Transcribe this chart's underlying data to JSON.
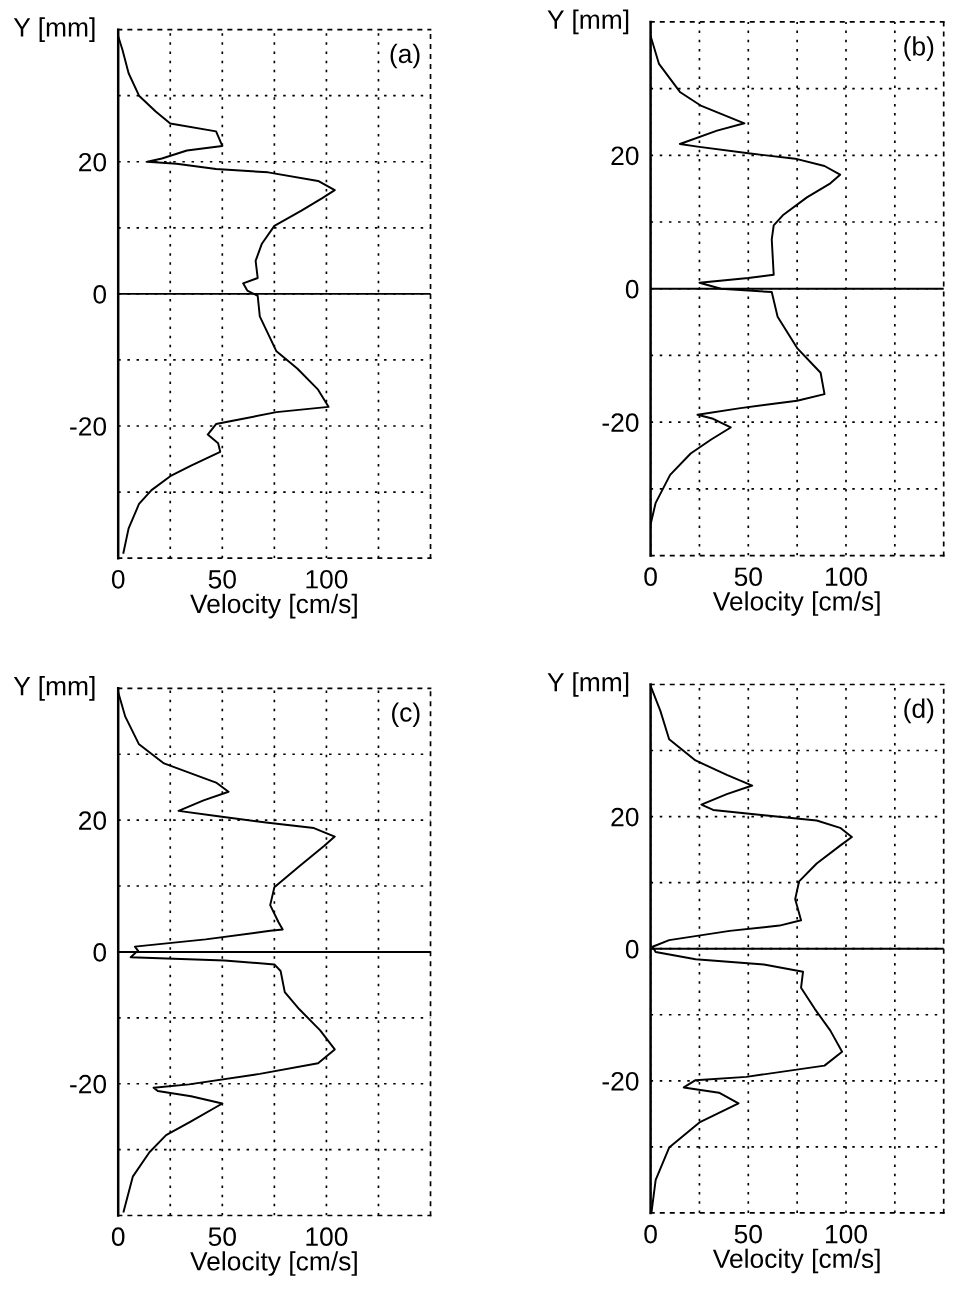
{
  "chart_data": [
    {
      "type": "line",
      "xlabel": "Velocity [cm/s]",
      "ylabel": "Y [mm]",
      "annotations": [
        "(a)"
      ],
      "xlim": [
        0,
        150
      ],
      "ylim": [
        -40,
        40
      ],
      "xticks": [
        0,
        {
          "value": 25,
          "label": null
        },
        50,
        {
          "value": 75,
          "label": null
        },
        100,
        {
          "value": 125,
          "label": null
        }
      ],
      "yticks": [
        {
          "value": -30,
          "label": null
        },
        -20,
        {
          "value": -10,
          "label": null
        },
        0,
        {
          "value": 10,
          "label": null
        },
        20,
        {
          "value": 30,
          "label": null
        }
      ],
      "grid": true,
      "line_style": "solid",
      "ref_lines": [
        {
          "axis": "y",
          "value": 0,
          "color": "#000000",
          "line_style": "solid"
        }
      ],
      "series": [
        {
          "color": "#000000",
          "x": [
            0,
            2,
            5,
            10,
            18,
            25,
            47,
            50,
            33,
            21,
            14,
            28,
            47,
            72,
            96,
            104,
            98,
            88,
            75,
            69,
            66,
            67,
            60,
            62,
            67,
            68,
            76,
            86,
            96,
            101,
            76,
            55,
            47,
            43,
            48,
            49,
            35,
            25,
            16,
            10,
            5,
            2.5
          ],
          "values": [
            39,
            37,
            33.4,
            30,
            27.6,
            25.8,
            24.6,
            22.4,
            21.7,
            20.5,
            20,
            19.7,
            18.9,
            18.4,
            17.1,
            15.7,
            14.5,
            12.6,
            10.3,
            7.6,
            5,
            2.4,
            1.6,
            0.5,
            -0.3,
            -3.4,
            -8.7,
            -11.3,
            -14.5,
            -17.1,
            -17.9,
            -19.2,
            -19.7,
            -21.3,
            -22.6,
            -23.9,
            -26,
            -27.6,
            -29.7,
            -31.8,
            -35.5,
            -39.2
          ]
        }
      ]
    },
    {
      "type": "line",
      "xlabel": "Velocity [cm/s]",
      "ylabel": "Y [mm]",
      "annotations": [
        "(b)"
      ],
      "xlim": [
        0,
        150
      ],
      "ylim": [
        -40,
        40
      ],
      "xticks": [
        0,
        {
          "value": 25,
          "label": null
        },
        50,
        {
          "value": 75,
          "label": null
        },
        100,
        {
          "value": 125,
          "label": null
        }
      ],
      "yticks": [
        {
          "value": -30,
          "label": null
        },
        -20,
        {
          "value": -10,
          "label": null
        },
        0,
        {
          "value": 10,
          "label": null
        },
        20,
        {
          "value": 30,
          "label": null
        }
      ],
      "grid": true,
      "line_style": "solid",
      "ref_lines": [
        {
          "axis": "y",
          "value": 0,
          "color": "#000000",
          "line_style": "solid"
        }
      ],
      "series": [
        {
          "color": "#000000",
          "x": [
            0,
            4.3,
            15,
            26,
            48,
            34,
            15,
            24,
            50,
            74,
            89,
            97,
            92,
            80,
            68,
            63,
            62,
            63,
            50,
            25,
            36,
            62,
            65,
            75,
            87,
            89,
            75,
            46,
            24,
            32,
            41,
            31,
            20.5,
            10,
            2.6,
            0
          ],
          "values": [
            37.9,
            33.7,
            29.5,
            27.4,
            24.8,
            23.7,
            21.7,
            21.3,
            20.3,
            19.5,
            18.4,
            17.1,
            15.8,
            13.7,
            11.1,
            9.5,
            7.4,
            2.1,
            1.6,
            0.9,
            0,
            -0.5,
            -4.2,
            -8.9,
            -12.6,
            -15.8,
            -16.8,
            -17.9,
            -18.9,
            -19.5,
            -20.8,
            -22.6,
            -24.7,
            -27.9,
            -32.1,
            -35.3
          ]
        }
      ]
    },
    {
      "type": "line",
      "xlabel": "Velocity [cm/s]",
      "ylabel": "Y [mm]",
      "annotations": [
        "(c)"
      ],
      "xlim": [
        0,
        150
      ],
      "ylim": [
        -40,
        40
      ],
      "xticks": [
        0,
        {
          "value": 25,
          "label": null
        },
        50,
        {
          "value": 75,
          "label": null
        },
        100,
        {
          "value": 125,
          "label": null
        }
      ],
      "yticks": [
        {
          "value": -30,
          "label": null
        },
        -20,
        {
          "value": -10,
          "label": null
        },
        0,
        {
          "value": 10,
          "label": null
        },
        20,
        {
          "value": 30,
          "label": null
        }
      ],
      "grid": true,
      "line_style": "solid",
      "ref_lines": [
        {
          "axis": "y",
          "value": 0,
          "color": "#000000",
          "line_style": "solid"
        }
      ],
      "series": [
        {
          "color": "#000000",
          "x": [
            0,
            3.4,
            10,
            22,
            47,
            53,
            41,
            29,
            48,
            72,
            94,
            104,
            99,
            87,
            75,
            73,
            77,
            79,
            73,
            42,
            8,
            9.5,
            6,
            51,
            75,
            78,
            80,
            87,
            97,
            104,
            96,
            68,
            34,
            17,
            19,
            35,
            50,
            35,
            23,
            15,
            7,
            2.6
          ],
          "values": [
            39.4,
            35.7,
            31.5,
            28.6,
            25.7,
            24.3,
            23,
            21.4,
            20.6,
            19.6,
            18.8,
            17.5,
            16.1,
            13,
            9.8,
            7.1,
            4.5,
            3.4,
            3.2,
            1.9,
            0.8,
            0.2,
            -0.8,
            -1.3,
            -1.9,
            -2.9,
            -6.1,
            -8.7,
            -11.9,
            -14.8,
            -16.9,
            -18.5,
            -20.1,
            -20.6,
            -21.1,
            -21.9,
            -23,
            -25.7,
            -27.8,
            -30.4,
            -34.1,
            -39.4
          ]
        }
      ]
    },
    {
      "type": "line",
      "xlabel": "Velocity [cm/s]",
      "ylabel": "Y [mm]",
      "annotations": [
        "(d)"
      ],
      "xlim": [
        0,
        150
      ],
      "ylim": [
        -40,
        40
      ],
      "xticks": [
        0,
        {
          "value": 25,
          "label": null
        },
        50,
        {
          "value": 75,
          "label": null
        },
        100,
        {
          "value": 125,
          "label": null
        }
      ],
      "yticks": [
        {
          "value": -30,
          "label": null
        },
        -20,
        {
          "value": -10,
          "label": null
        },
        0,
        {
          "value": 10,
          "label": null
        },
        20,
        {
          "value": 30,
          "label": null
        }
      ],
      "grid": true,
      "line_style": "solid",
      "ref_lines": [
        {
          "axis": "y",
          "value": 0,
          "color": "#000000",
          "line_style": "solid"
        }
      ],
      "series": [
        {
          "color": "#000000",
          "x": [
            0,
            5,
            9.5,
            23,
            39,
            52,
            39,
            26,
            32,
            58,
            85,
            97,
            103,
            97,
            85,
            76,
            74,
            77,
            66,
            40.5,
            9.5,
            1,
            2.6,
            23,
            58,
            78,
            77,
            84,
            92,
            98,
            89,
            49,
            23,
            17,
            35,
            45,
            25,
            9.5,
            2.6,
            0.5
          ],
          "values": [
            39.8,
            36,
            31.7,
            28.5,
            26.3,
            24.7,
            23.4,
            21.8,
            21,
            20.2,
            19.4,
            18.3,
            16.9,
            15.6,
            12.9,
            10.2,
            7.5,
            4.3,
            3.5,
            2.7,
            1.3,
            0.3,
            -0.5,
            -1.6,
            -2.4,
            -3.5,
            -5.9,
            -9.1,
            -12.4,
            -15.6,
            -17.7,
            -19.4,
            -19.9,
            -21,
            -21.8,
            -23.4,
            -26.3,
            -30.1,
            -35,
            -39.8
          ]
        }
      ]
    }
  ]
}
